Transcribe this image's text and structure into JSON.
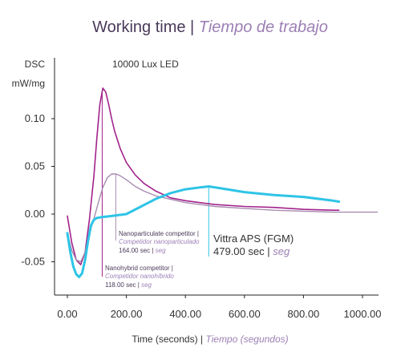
{
  "chart_data": {
    "type": "line",
    "title": "Working time",
    "title_sep": " | ",
    "title_alt": "Tiempo de trabajo",
    "subtitle": "10000 Lux LED",
    "ylabel_top": "DSC",
    "ylabel_unit": "mW/mg",
    "xlabel": "Time (seconds)",
    "xlabel_sep": " | ",
    "xlabel_alt": "Tiempo (segundos)",
    "xlim": [
      -30,
      1050
    ],
    "ylim": [
      -0.092,
      0.168
    ],
    "x_ticks": [
      0,
      200,
      400,
      600,
      800,
      1000
    ],
    "x_tick_labels": [
      "0.00",
      "200.00",
      "400.00",
      "600.00",
      "800.00",
      "1000.00"
    ],
    "y_ticks": [
      -0.05,
      0,
      0.05,
      0.1
    ],
    "y_tick_labels": [
      "-0.05",
      "0.00",
      "0.05",
      "0.10"
    ],
    "grid": false,
    "series": [
      {
        "color": "#a2228b",
        "x": [
          0,
          15,
          30,
          45,
          60,
          75,
          90,
          100,
          110,
          120,
          130,
          140,
          150,
          160,
          180,
          200,
          230,
          260,
          300,
          350,
          400,
          500,
          600,
          700,
          800,
          900,
          920
        ],
        "y": [
          -0.002,
          -0.03,
          -0.048,
          -0.053,
          -0.04,
          -0.005,
          0.04,
          0.08,
          0.115,
          0.132,
          0.128,
          0.115,
          0.1,
          0.087,
          0.068,
          0.054,
          0.041,
          0.032,
          0.024,
          0.017,
          0.014,
          0.01,
          0.008,
          0.007,
          0.005,
          0.004,
          0.004
        ]
      },
      {
        "color": "#a88ab0",
        "x": [
          0,
          15,
          30,
          45,
          60,
          75,
          90,
          105,
          120,
          135,
          150,
          165,
          180,
          200,
          230,
          260,
          300,
          400,
          500,
          600,
          700,
          800,
          900,
          1000,
          1050
        ],
        "y": [
          -0.02,
          -0.038,
          -0.048,
          -0.05,
          -0.04,
          -0.02,
          -0.005,
          0.012,
          0.028,
          0.038,
          0.042,
          0.042,
          0.04,
          0.036,
          0.029,
          0.024,
          0.019,
          0.012,
          0.008,
          0.006,
          0.004,
          0.003,
          0.002,
          0.002,
          0.002
        ]
      },
      {
        "color": "#2ec4e6",
        "x": [
          0,
          10,
          20,
          30,
          40,
          50,
          60,
          70,
          80,
          90,
          100,
          120,
          150,
          200,
          250,
          300,
          350,
          400,
          450,
          479,
          520,
          600,
          700,
          800,
          900,
          920
        ],
        "y": [
          -0.02,
          -0.04,
          -0.055,
          -0.063,
          -0.066,
          -0.062,
          -0.048,
          -0.028,
          -0.012,
          -0.006,
          -0.004,
          -0.003,
          -0.002,
          0.0,
          0.008,
          0.016,
          0.022,
          0.026,
          0.028,
          0.029,
          0.027,
          0.023,
          0.02,
          0.018,
          0.014,
          0.013
        ]
      }
    ],
    "annotations": [
      {
        "x": 118,
        "label": "Nanohybrid competitor",
        "sep": " |",
        "label_alt": "Competidor nanohíbrido",
        "value": "118.00 sec | ",
        "value_alt": "seg",
        "color": "#a2228b"
      },
      {
        "x": 164,
        "label": "Nanoparticulate competitor",
        "sep": " |",
        "label_alt": "Competidor nanoparticulado",
        "value": "164.00 sec | ",
        "value_alt": "seg",
        "color": "#a88ab0"
      },
      {
        "x": 479,
        "label": "Vittra APS (FGM)",
        "value": "479.00 sec | ",
        "value_alt": "seg",
        "color": "#2ec4e6"
      }
    ]
  }
}
